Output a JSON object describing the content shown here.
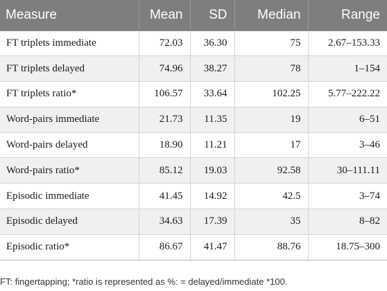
{
  "table": {
    "headers": [
      "Measure",
      "Mean",
      "SD",
      "Median",
      "Range"
    ],
    "rows": [
      [
        "FT triplets immediate",
        "72.03",
        "36.30",
        "75",
        "2.67–153.33"
      ],
      [
        "FT triplets delayed",
        "74.96",
        "38.27",
        "78",
        "1–154"
      ],
      [
        "FT triplets ratio*",
        "106.57",
        "33.64",
        "102.25",
        "5.77–222.22"
      ],
      [
        "Word-pairs immediate",
        "21.73",
        "11.35",
        "19",
        "6–51"
      ],
      [
        "Word-pairs delayed",
        "18.90",
        "11.21",
        "17",
        "3–46"
      ],
      [
        "Word-pairs ratio*",
        "85.12",
        "19.03",
        "92.58",
        "30–111.11"
      ],
      [
        "Episodic immediate",
        "41.45",
        "14.92",
        "42.5",
        "3–74"
      ],
      [
        "Episodic delayed",
        "34.63",
        "17.39",
        "35",
        "8–82"
      ],
      [
        "Episodic ratio*",
        "86.67",
        "41.47",
        "88.76",
        "18.75–300"
      ]
    ]
  },
  "footnote": "FT: fingertapping; *ratio is represented as %: = delayed/immediate *100.",
  "colors": {
    "header_bg": "#7e7e7e",
    "header_text": "#ffffff",
    "stripe_bg": "#f0f0f0",
    "grid_line": "#d3d3d3"
  }
}
